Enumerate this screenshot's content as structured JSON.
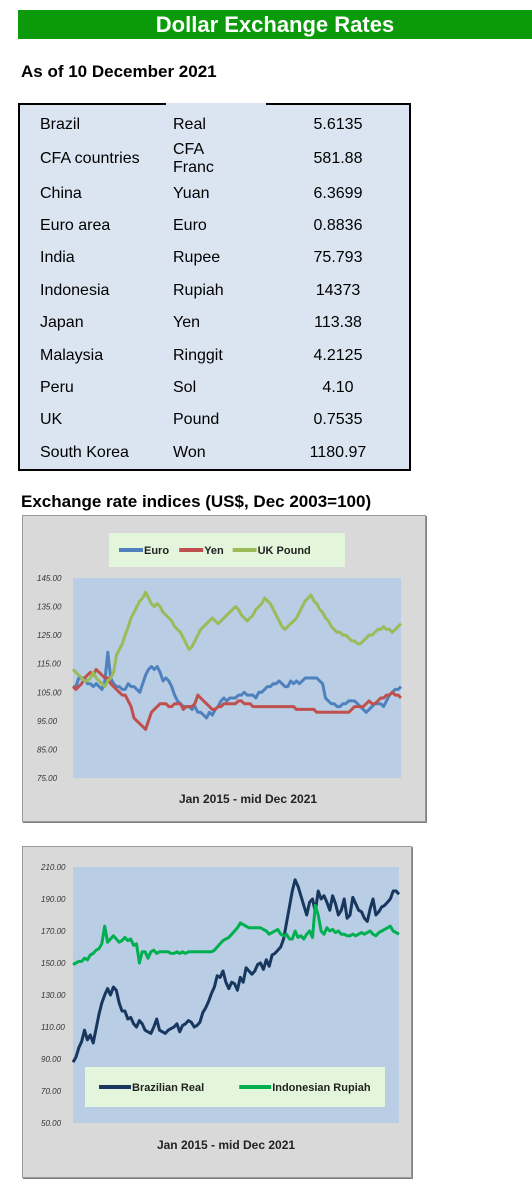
{
  "header": {
    "title": "Dollar Exchange Rates"
  },
  "as_of": "As of 10 December 2021",
  "rates_table": {
    "rows": [
      {
        "country": "Brazil",
        "currency": "Real",
        "rate": "5.6135"
      },
      {
        "country": "CFA countries",
        "currency": "CFA Franc",
        "rate": "581.88"
      },
      {
        "country": "China",
        "currency": "Yuan",
        "rate": "6.3699"
      },
      {
        "country": "Euro area",
        "currency": "Euro",
        "rate": "0.8836"
      },
      {
        "country": "India",
        "currency": "Rupee",
        "rate": "75.793"
      },
      {
        "country": "Indonesia",
        "currency": "Rupiah",
        "rate": "14373"
      },
      {
        "country": "Japan",
        "currency": "Yen",
        "rate": "113.38"
      },
      {
        "country": "Malaysia",
        "currency": "Ringgit",
        "rate": "4.2125"
      },
      {
        "country": "Peru",
        "currency": "Sol",
        "rate": "4.10"
      },
      {
        "country": "UK",
        "currency": "Pound",
        "rate": "0.7535"
      },
      {
        "country": "South Korea",
        "currency": "Won",
        "rate": "1180.97"
      }
    ]
  },
  "indices_title": "Exchange rate indices (US$, Dec 2003=100)",
  "colors": {
    "banner": "#0a9a0a",
    "plot_bg": "#b9cde5",
    "frame_bg": "#d9d9d9",
    "legend_bg": "#e3f6dc",
    "table_bg": "#dbe5f1"
  },
  "chart_data": [
    {
      "type": "line",
      "xlabel": "Jan 2015 - mid Dec 2021",
      "ylim": [
        75,
        145
      ],
      "yticks": [
        "145.00",
        "135.00",
        "125.00",
        "115.00",
        "105.00",
        "95.00",
        "85.00",
        "75.00"
      ],
      "legend_position": "top",
      "series": [
        {
          "name": "Euro",
          "color": "#4f81bd",
          "values": [
            107,
            107,
            110,
            110,
            110,
            108,
            108,
            107,
            108,
            107,
            106,
            109,
            119,
            110,
            108,
            107,
            107,
            106,
            106,
            108,
            107,
            107,
            106,
            105,
            108,
            111,
            113,
            114,
            113,
            114,
            112,
            109,
            110,
            109,
            107,
            104,
            102,
            101,
            100,
            100,
            100,
            99,
            100,
            98,
            98,
            97,
            96,
            98,
            97,
            99,
            100,
            102,
            103,
            102,
            103,
            103,
            103,
            104,
            104,
            105,
            104,
            104,
            104,
            103,
            105,
            105,
            106,
            107,
            107,
            108,
            108,
            109,
            108,
            107,
            107,
            109,
            108,
            109,
            108,
            109,
            110,
            110,
            110,
            110,
            110,
            109,
            108,
            103,
            102,
            101,
            101,
            100,
            100,
            101,
            101,
            102,
            102,
            102,
            101,
            100,
            99,
            98,
            99,
            100,
            101,
            101,
            101,
            100,
            102,
            104,
            105,
            106,
            106,
            107
          ]
        },
        {
          "name": "Yen",
          "color": "#c0504d",
          "values": [
            107,
            106,
            107,
            108,
            110,
            111,
            112,
            111,
            113,
            112,
            111,
            110,
            110,
            108,
            107,
            106,
            105,
            104,
            104,
            102,
            100,
            96,
            95,
            94,
            93,
            92,
            95,
            98,
            99,
            100,
            101,
            101,
            101,
            100,
            100,
            101,
            101,
            101,
            99,
            100,
            100,
            100,
            101,
            104,
            103,
            102,
            101,
            100,
            99,
            99,
            100,
            100,
            101,
            101,
            101,
            101,
            101,
            102,
            102,
            101,
            101,
            101,
            100,
            100,
            100,
            100,
            100,
            100,
            100,
            100,
            100,
            100,
            100,
            100,
            100,
            100,
            100,
            99,
            99,
            99,
            99,
            99,
            99,
            99,
            98,
            98,
            98,
            98,
            98,
            98,
            98,
            98,
            98,
            98,
            98,
            98,
            99,
            100,
            100,
            100,
            100,
            101,
            102,
            101,
            101,
            102,
            103,
            103,
            104,
            104,
            105,
            104,
            104,
            103
          ]
        },
        {
          "name": "UK Pound",
          "color": "#9bbb59",
          "values": [
            113,
            112,
            111,
            110,
            109,
            109,
            110,
            112,
            110,
            109,
            108,
            107,
            109,
            110,
            112,
            118,
            120,
            122,
            125,
            128,
            131,
            133,
            135,
            137,
            138,
            140,
            138,
            136,
            135,
            136,
            135,
            133,
            132,
            131,
            130,
            128,
            127,
            126,
            124,
            122,
            120,
            121,
            123,
            125,
            127,
            128,
            129,
            130,
            131,
            130,
            129,
            130,
            131,
            132,
            133,
            134,
            135,
            134,
            132,
            131,
            130,
            131,
            132,
            134,
            135,
            136,
            138,
            137,
            136,
            134,
            132,
            130,
            128,
            127,
            128,
            129,
            130,
            131,
            133,
            135,
            137,
            138,
            139,
            137,
            136,
            134,
            133,
            131,
            130,
            128,
            127,
            126,
            126,
            125,
            125,
            124,
            123,
            123,
            122,
            122,
            123,
            124,
            125,
            125,
            126,
            127,
            127,
            128,
            127,
            127,
            126,
            127,
            128,
            129
          ]
        }
      ]
    },
    {
      "type": "line",
      "xlabel": "Jan 2015 - mid Dec 2021",
      "ylim": [
        50,
        210
      ],
      "yticks": [
        "210.00",
        "190.00",
        "170.00",
        "150.00",
        "130.00",
        "110.00",
        "90.00",
        "70.00",
        "50.00"
      ],
      "legend_position": "bottom",
      "series": [
        {
          "name": "Brazilian Real",
          "color": "#17375e",
          "values": [
            88,
            91,
            97,
            101,
            108,
            102,
            105,
            100,
            109,
            118,
            125,
            130,
            134,
            130,
            135,
            133,
            125,
            120,
            120,
            115,
            116,
            112,
            110,
            114,
            112,
            108,
            107,
            106,
            110,
            115,
            108,
            107,
            106,
            108,
            109,
            110,
            112,
            107,
            111,
            112,
            114,
            113,
            110,
            111,
            113,
            119,
            122,
            126,
            131,
            135,
            142,
            141,
            145,
            138,
            134,
            138,
            137,
            133,
            141,
            138,
            147,
            145,
            143,
            145,
            149,
            150,
            146,
            152,
            148,
            155,
            156,
            158,
            160,
            165,
            175,
            185,
            195,
            202,
            198,
            192,
            186,
            180,
            188,
            190,
            182,
            195,
            190,
            192,
            188,
            183,
            192,
            187,
            180,
            183,
            190,
            178,
            180,
            191,
            187,
            183,
            182,
            178,
            176,
            184,
            190,
            180,
            182,
            185,
            186,
            188,
            190,
            195,
            195,
            193
          ]
        },
        {
          "name": "Indonesian Rupiah",
          "color": "#00b050",
          "values": [
            149,
            150,
            151,
            151,
            153,
            152,
            155,
            156,
            158,
            159,
            162,
            173,
            163,
            165,
            167,
            165,
            163,
            164,
            166,
            164,
            165,
            161,
            162,
            150,
            157,
            157,
            153,
            157,
            158,
            156,
            157,
            157,
            157,
            157,
            156,
            156,
            157,
            156,
            157,
            156,
            157,
            157,
            157,
            157,
            157,
            157,
            157,
            157,
            157,
            158,
            160,
            162,
            164,
            165,
            166,
            168,
            170,
            172,
            175,
            174,
            173,
            172,
            172,
            172,
            172,
            172,
            171,
            170,
            168,
            169,
            170,
            171,
            168,
            167,
            168,
            165,
            165,
            170,
            166,
            167,
            165,
            168,
            170,
            166,
            186,
            180,
            170,
            168,
            172,
            170,
            171,
            169,
            170,
            168,
            168,
            167,
            167,
            168,
            167,
            168,
            169,
            168,
            169,
            170,
            168,
            167,
            169,
            170,
            171,
            172,
            173,
            170,
            169,
            168
          ]
        }
      ]
    }
  ]
}
